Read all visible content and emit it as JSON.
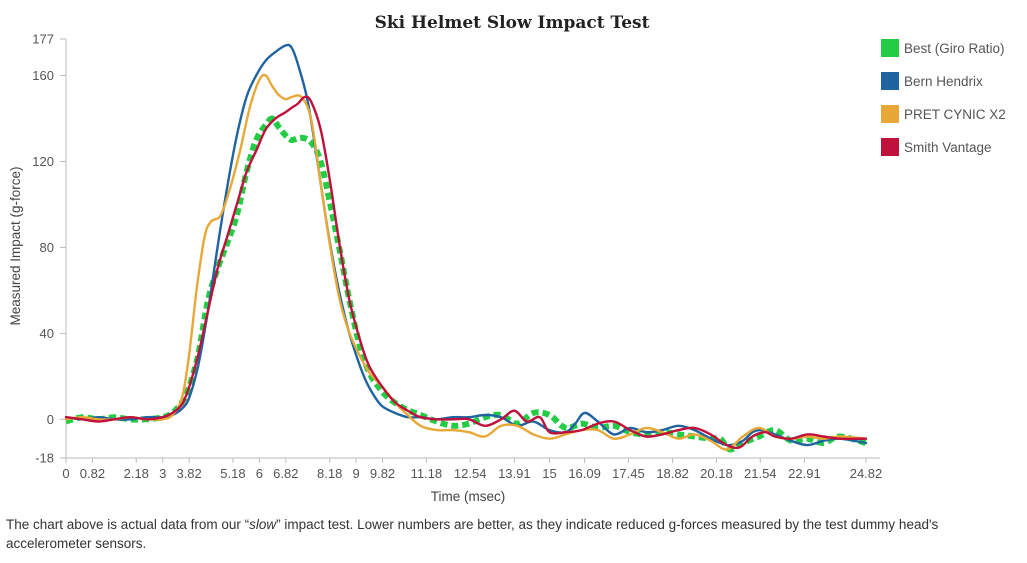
{
  "chart_data": {
    "type": "line",
    "title": "Ski Helmet Slow Impact Test",
    "xlabel": "Time (msec)",
    "ylabel": "Measured Impact (g-force)",
    "xlim": [
      0,
      24.82
    ],
    "ylim": [
      -18,
      177
    ],
    "grid": false,
    "legend": "right",
    "x_ticks": [
      {
        "value": 0,
        "label": "0"
      },
      {
        "value": 0.82,
        "label": "0.82"
      },
      {
        "value": 2.18,
        "label": "2.18"
      },
      {
        "value": 3,
        "label": "3"
      },
      {
        "value": 3.82,
        "label": "3.82"
      },
      {
        "value": 5.18,
        "label": "5.18"
      },
      {
        "value": 6,
        "label": "6"
      },
      {
        "value": 6.82,
        "label": "6.82"
      },
      {
        "value": 8.18,
        "label": "8.18"
      },
      {
        "value": 9,
        "label": "9"
      },
      {
        "value": 9.82,
        "label": "9.82"
      },
      {
        "value": 11.18,
        "label": "11.18"
      },
      {
        "value": 12.54,
        "label": "12.54"
      },
      {
        "value": 13.91,
        "label": "13.91"
      },
      {
        "value": 15,
        "label": "15"
      },
      {
        "value": 16.09,
        "label": "16.09"
      },
      {
        "value": 17.45,
        "label": "17.45"
      },
      {
        "value": 18.82,
        "label": "18.82"
      },
      {
        "value": 20.18,
        "label": "20.18"
      },
      {
        "value": 21.54,
        "label": "21.54"
      },
      {
        "value": 22.91,
        "label": "22.91"
      },
      {
        "value": 24.82,
        "label": "24.82"
      }
    ],
    "y_ticks": [
      {
        "value": -18,
        "label": "-18"
      },
      {
        "value": 0,
        "label": "0"
      },
      {
        "value": 40,
        "label": "40"
      },
      {
        "value": 80,
        "label": "80"
      },
      {
        "value": 120,
        "label": "120"
      },
      {
        "value": 160,
        "label": "160"
      },
      {
        "value": 177,
        "label": "177"
      }
    ],
    "series": [
      {
        "name": "Best (Giro Ratio)",
        "color": "#22cc44",
        "dashed": true,
        "x": [
          0,
          0.5,
          1,
          1.5,
          2,
          2.5,
          3,
          3.3,
          3.6,
          3.82,
          4.1,
          4.4,
          4.7,
          5,
          5.3,
          5.6,
          5.9,
          6.2,
          6.4,
          6.6,
          6.82,
          7,
          7.3,
          7.6,
          7.9,
          8.2,
          8.5,
          8.8,
          9.1,
          9.4,
          9.7,
          10,
          10.5,
          11,
          11.5,
          12,
          12.5,
          13,
          13.5,
          14,
          14.5,
          15,
          15.5,
          16,
          16.5,
          17,
          17.5,
          18,
          18.5,
          19,
          19.5,
          20,
          20.3,
          20.6,
          21,
          21.5,
          22,
          22.5,
          23,
          23.5,
          24,
          24.82
        ],
        "y": [
          -1,
          1,
          0,
          1,
          0,
          0,
          1,
          3,
          8,
          15,
          30,
          55,
          70,
          82,
          95,
          115,
          130,
          137,
          140,
          136,
          132,
          130,
          131,
          129,
          120,
          100,
          78,
          55,
          35,
          22,
          15,
          10,
          5,
          2,
          -1,
          -3,
          -2,
          1,
          2,
          -2,
          3,
          2,
          -4,
          -2,
          -4,
          -3,
          -6,
          -7,
          -6,
          -7,
          -8,
          -9,
          -9,
          -14,
          -11,
          -8,
          -5,
          -10,
          -9,
          -11,
          -8,
          -11
        ]
      },
      {
        "name": "Bern Hendrix",
        "color": "#1f64a0",
        "dashed": false,
        "x": [
          0,
          0.5,
          1,
          1.5,
          2,
          2.5,
          3,
          3.3,
          3.6,
          3.82,
          4.1,
          4.4,
          4.7,
          5,
          5.3,
          5.6,
          5.9,
          6.2,
          6.5,
          6.82,
          7,
          7.2,
          7.5,
          7.8,
          8.1,
          8.4,
          8.7,
          9,
          9.3,
          9.6,
          9.82,
          10.2,
          10.6,
          11,
          11.5,
          12,
          12.5,
          13,
          13.5,
          14,
          14.5,
          15,
          15.5,
          15.8,
          16.09,
          16.5,
          17,
          17.5,
          18,
          18.5,
          19,
          19.5,
          20,
          20.3,
          20.6,
          21,
          21.3,
          21.6,
          22,
          22.5,
          23,
          23.5,
          24,
          24.82
        ],
        "y": [
          1,
          0,
          1,
          0,
          0,
          1,
          1,
          2,
          5,
          10,
          25,
          50,
          80,
          108,
          132,
          150,
          160,
          167,
          171,
          174,
          173,
          165,
          148,
          120,
          90,
          65,
          45,
          30,
          18,
          10,
          6,
          3,
          1,
          1,
          0,
          1,
          1,
          2,
          1,
          -3,
          -1,
          -5,
          -6,
          -2,
          3,
          -1,
          -7,
          -4,
          -6,
          -5,
          -3,
          -5,
          -9,
          -11,
          -12,
          -10,
          -6,
          -5,
          -7,
          -10,
          -12,
          -10,
          -9,
          -11
        ]
      },
      {
        "name": "PRET CYNIC X2",
        "color": "#e8a838",
        "dashed": false,
        "x": [
          0,
          0.5,
          1,
          1.5,
          2,
          2.5,
          3,
          3.3,
          3.6,
          3.82,
          4.05,
          4.3,
          4.5,
          4.8,
          5.1,
          5.4,
          5.7,
          6,
          6.2,
          6.4,
          6.6,
          6.82,
          7,
          7.3,
          7.6,
          7.9,
          8.2,
          8.5,
          8.8,
          9.1,
          9.4,
          9.82,
          10.2,
          10.6,
          11,
          11.5,
          12,
          12.5,
          13,
          13.5,
          14,
          14.5,
          15,
          15.5,
          16,
          16.5,
          17,
          17.5,
          18,
          18.5,
          19,
          19.5,
          20,
          20.5,
          21,
          21.5,
          22,
          22.5,
          23,
          23.5,
          24,
          24.82
        ],
        "y": [
          0,
          1,
          0,
          0,
          1,
          0,
          0,
          2,
          10,
          30,
          60,
          85,
          92,
          95,
          108,
          125,
          145,
          158,
          160,
          155,
          151,
          149,
          150,
          150,
          140,
          110,
          80,
          55,
          40,
          30,
          22,
          15,
          8,
          2,
          -3,
          -5,
          -5,
          -6,
          -8,
          -3,
          -3,
          -7,
          -9,
          -7,
          -5,
          -5,
          -9,
          -7,
          -4,
          -6,
          -9,
          -7,
          -10,
          -14,
          -8,
          -4,
          -8,
          -9,
          -8,
          -9,
          -8,
          -9
        ]
      },
      {
        "name": "Smith Vantage",
        "color": "#c0103c",
        "dashed": false,
        "x": [
          0,
          0.5,
          1,
          1.5,
          2,
          2.5,
          3,
          3.3,
          3.6,
          3.82,
          4.1,
          4.4,
          4.7,
          5,
          5.3,
          5.6,
          5.9,
          6.2,
          6.5,
          6.82,
          7,
          7.2,
          7.4,
          7.6,
          7.9,
          8.2,
          8.5,
          8.8,
          9.1,
          9.4,
          9.82,
          10.2,
          10.6,
          11,
          11.5,
          12,
          12.5,
          13,
          13.5,
          13.91,
          14.3,
          14.7,
          15,
          15.5,
          16,
          16.5,
          17,
          17.5,
          18,
          18.5,
          19,
          19.5,
          20,
          20.5,
          20.9,
          21.3,
          21.7,
          22,
          22.5,
          23,
          23.5,
          24,
          24.82
        ],
        "y": [
          1,
          0,
          -1,
          0,
          1,
          0,
          1,
          3,
          7,
          15,
          30,
          50,
          70,
          85,
          100,
          115,
          125,
          135,
          140,
          143,
          145,
          147,
          150,
          148,
          135,
          110,
          80,
          55,
          38,
          25,
          15,
          8,
          4,
          1,
          0,
          0,
          0,
          -3,
          0,
          4,
          -1,
          1,
          -6,
          -6,
          -5,
          -2,
          -1,
          -5,
          -8,
          -7,
          -5,
          -4,
          -7,
          -12,
          -13,
          -8,
          -6,
          -8,
          -9,
          -7,
          -8,
          -9,
          -9
        ]
      }
    ]
  },
  "caption": {
    "before": "The chart above is actual data from our “",
    "emph": "slow",
    "after": "” impact test. Lower numbers are better, as they indicate reduced g-forces measured by the test dummy head's accelerometer sensors."
  }
}
